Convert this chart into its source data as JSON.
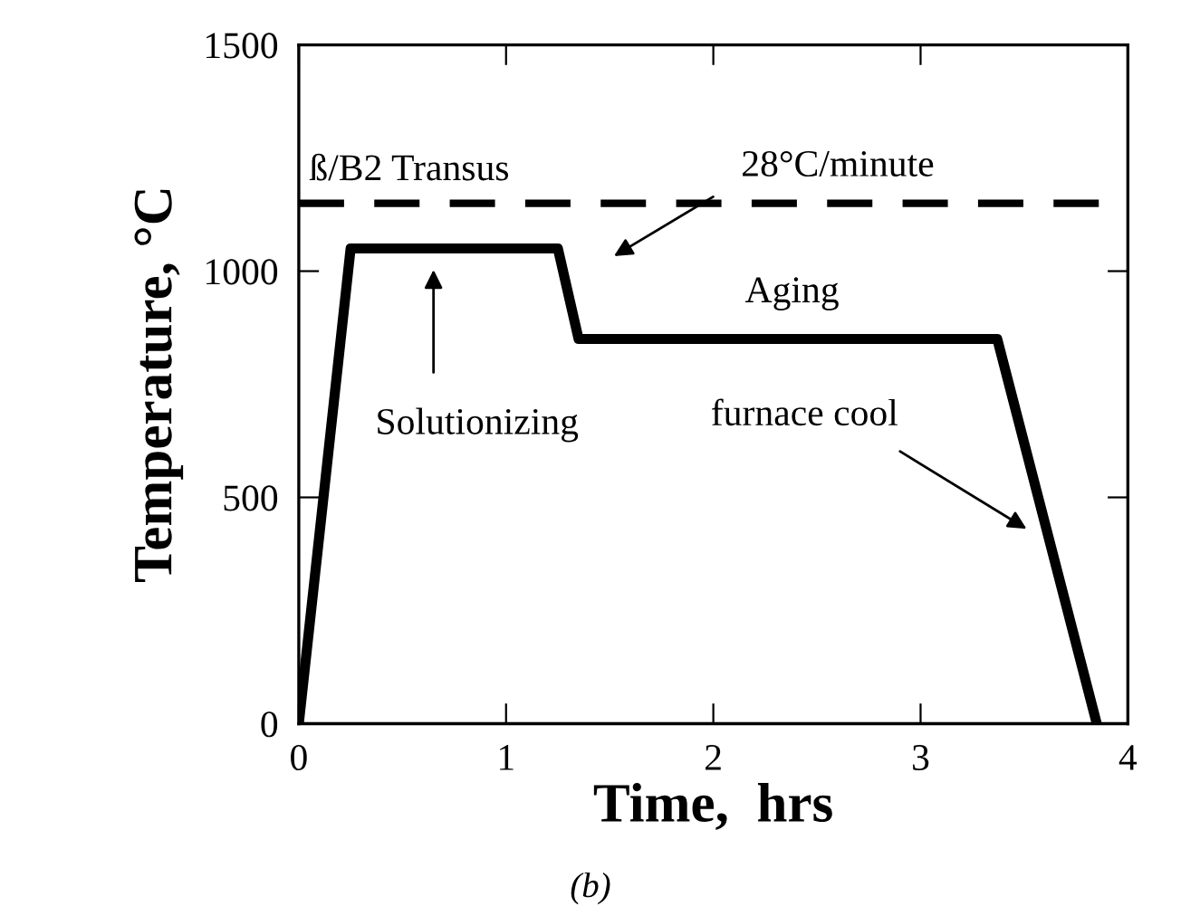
{
  "chart_data": {
    "type": "line",
    "xlabel": "Time,  hrs",
    "ylabel": "Temperature, °C",
    "x": [
      0,
      0.25,
      1.25,
      1.35,
      3.37,
      3.85
    ],
    "series": [
      {
        "color": "#000000",
        "values": [
          0,
          1050,
          1050,
          850,
          850,
          0
        ]
      }
    ],
    "xlim": [
      0,
      4
    ],
    "ylim": [
      0,
      1500
    ],
    "xticks": [
      0,
      1,
      2,
      3,
      4
    ],
    "yticks": [
      0,
      500,
      1000,
      1500
    ],
    "grid": false,
    "marker": "none",
    "line_style": "solid",
    "ref_lines": [
      {
        "axis": "y",
        "value": 1150,
        "label": "ß/B2 Transus",
        "color": "#000000",
        "line_style": "dashed"
      }
    ],
    "annotations": [
      "Solutionizing",
      "28°C/minute",
      "Aging",
      "furnace cool",
      "(b)"
    ]
  }
}
